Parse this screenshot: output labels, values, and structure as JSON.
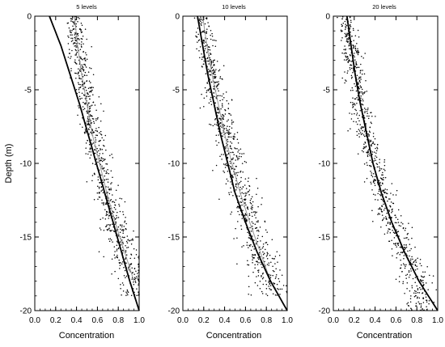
{
  "chart_data": [
    {
      "type": "scatter",
      "title": "5 levels",
      "xlabel": "Concentration",
      "ylabel": "Depth (m)",
      "xlim": [
        0.0,
        1.0
      ],
      "ylim": [
        -20,
        0
      ],
      "xticks": [
        "0.0",
        "0.2",
        "0.4",
        "0.6",
        "0.8",
        "1.0"
      ],
      "yticks": [
        "0",
        "-5",
        "-10",
        "-15",
        "-20"
      ],
      "grid": false,
      "curve": {
        "depth": [
          0,
          -2,
          -4,
          -6,
          -8,
          -10,
          -12,
          -14,
          -16,
          -18,
          -20
        ],
        "concentration": [
          0.14,
          0.25,
          0.34,
          0.43,
          0.51,
          0.59,
          0.67,
          0.75,
          0.83,
          0.91,
          1.0
        ]
      },
      "mean_line": {
        "depth": [
          0,
          -2,
          -4,
          -6,
          -8,
          -10,
          -12,
          -14,
          -16,
          -18
        ],
        "concentration": [
          0.38,
          0.41,
          0.45,
          0.5,
          0.55,
          0.62,
          0.69,
          0.77,
          0.86,
          0.95
        ]
      },
      "scatter": {
        "n_points": 800,
        "depth_range": [
          0,
          -19
        ],
        "spread": 0.06
      }
    },
    {
      "type": "scatter",
      "title": "10 levels",
      "xlabel": "Concentration",
      "ylabel": "",
      "xlim": [
        0.0,
        1.0
      ],
      "ylim": [
        -20,
        0
      ],
      "xticks": [
        "0.0",
        "0.2",
        "0.4",
        "0.6",
        "0.8",
        "1.0"
      ],
      "yticks": [
        "0",
        "-5",
        "-10",
        "-15",
        "-20"
      ],
      "grid": false,
      "curve": {
        "depth": [
          0,
          -2,
          -4,
          -6,
          -8,
          -10,
          -12,
          -14,
          -16,
          -18,
          -20
        ],
        "concentration": [
          0.14,
          0.19,
          0.24,
          0.3,
          0.36,
          0.43,
          0.5,
          0.6,
          0.71,
          0.84,
          1.0
        ]
      },
      "mean_line": {
        "depth": [
          0,
          -2,
          -4,
          -6,
          -8,
          -10,
          -12,
          -14,
          -16,
          -18
        ],
        "concentration": [
          0.19,
          0.23,
          0.28,
          0.34,
          0.4,
          0.47,
          0.55,
          0.64,
          0.74,
          0.84
        ]
      },
      "scatter": {
        "n_points": 800,
        "depth_range": [
          0,
          -19
        ],
        "spread": 0.07
      }
    },
    {
      "type": "scatter",
      "title": "20 levels",
      "xlabel": "Concentration",
      "ylabel": "",
      "xlim": [
        0.0,
        1.0
      ],
      "ylim": [
        -20,
        0
      ],
      "xticks": [
        "0.0",
        "0.2",
        "0.4",
        "0.6",
        "0.8",
        "1.0"
      ],
      "yticks": [
        "0",
        "-5",
        "-10",
        "-15",
        "-20"
      ],
      "grid": false,
      "curve": {
        "depth": [
          0,
          -2,
          -4,
          -6,
          -8,
          -10,
          -12,
          -14,
          -16,
          -18,
          -20
        ],
        "concentration": [
          0.13,
          0.17,
          0.21,
          0.26,
          0.32,
          0.38,
          0.46,
          0.56,
          0.68,
          0.82,
          1.0
        ]
      },
      "mean_line": {
        "depth": [
          0,
          -2,
          -4,
          -6,
          -8,
          -10,
          -12,
          -14,
          -16,
          -18
        ],
        "concentration": [
          0.13,
          0.17,
          0.21,
          0.26,
          0.32,
          0.38,
          0.46,
          0.56,
          0.68,
          0.82
        ]
      },
      "scatter": {
        "n_points": 800,
        "depth_range": [
          0,
          -20
        ],
        "spread": 0.06
      }
    }
  ]
}
